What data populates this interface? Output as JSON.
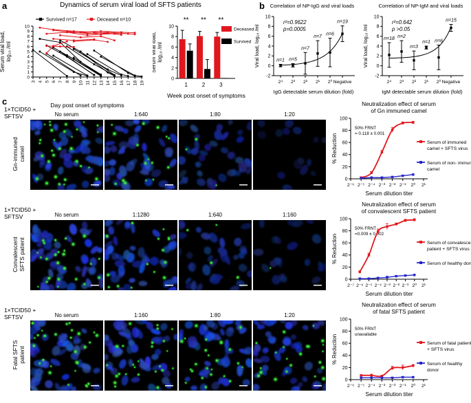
{
  "panels": {
    "a": "a",
    "b": "b",
    "c": "c"
  },
  "chart_data": [
    {
      "id": "a_line",
      "type": "line",
      "title": "Dynamics of serum viral load of SFTS patients",
      "ylabel_lines": [
        "Serum viral load,",
        "log₁₀ /ml"
      ],
      "xlabel": "Day post onset of symptoms",
      "ylim": [
        0,
        10
      ],
      "yticks": [
        0,
        1,
        2,
        3,
        4,
        5,
        6,
        7,
        8,
        9,
        10
      ],
      "xticks": [
        3,
        4,
        5,
        6,
        7,
        8,
        9,
        10,
        11,
        12,
        13,
        14,
        15,
        16,
        17,
        18,
        19
      ],
      "legend": [
        {
          "label": "Survived n=17",
          "color": "#000000"
        },
        {
          "label": "Deceased n=10",
          "color": "#e1171e"
        }
      ],
      "survived_color": "#000000",
      "deceased_color": "#e1171e",
      "survived_lines": [
        [
          [
            3,
            5.3
          ],
          [
            8,
            0.2
          ]
        ],
        [
          [
            4,
            7.5
          ],
          [
            7,
            6.8
          ],
          [
            10,
            3.0
          ],
          [
            13,
            0.3
          ]
        ],
        [
          [
            4,
            5.0
          ],
          [
            9,
            1.0
          ],
          [
            11,
            0.2
          ]
        ],
        [
          [
            5,
            6.2
          ],
          [
            8,
            4.0
          ],
          [
            12,
            0.4
          ]
        ],
        [
          [
            5,
            4.6
          ],
          [
            10,
            0.3
          ]
        ],
        [
          [
            6,
            5.8
          ],
          [
            9,
            3.5
          ],
          [
            13,
            0.4
          ]
        ],
        [
          [
            6,
            4.2
          ],
          [
            11,
            0.3
          ]
        ],
        [
          [
            7,
            7.2
          ],
          [
            10,
            5.0
          ],
          [
            14,
            0.9
          ],
          [
            15,
            0.2
          ]
        ],
        [
          [
            7,
            5.0
          ],
          [
            12,
            0.4
          ]
        ],
        [
          [
            8,
            6.0
          ],
          [
            12,
            2.5
          ],
          [
            15,
            0.3
          ]
        ],
        [
          [
            8,
            4.3
          ],
          [
            13,
            0.2
          ]
        ],
        [
          [
            9,
            5.5
          ],
          [
            14,
            1.5
          ],
          [
            16,
            0.3
          ]
        ],
        [
          [
            9,
            3.8
          ],
          [
            13,
            0.5
          ]
        ],
        [
          [
            10,
            5.0
          ],
          [
            15,
            0.4
          ]
        ],
        [
          [
            11,
            4.5
          ],
          [
            16,
            0.5
          ],
          [
            17,
            0.2
          ]
        ],
        [
          [
            12,
            5.2
          ],
          [
            17,
            0.8
          ],
          [
            18,
            0.2
          ]
        ],
        [
          [
            13,
            4.0
          ],
          [
            18,
            0.3
          ],
          [
            19,
            0.1
          ]
        ]
      ],
      "deceased_lines": [
        [
          [
            4,
            9.7
          ],
          [
            6,
            9.3
          ],
          [
            9,
            9.0
          ],
          [
            12,
            8.8
          ],
          [
            15,
            8.5
          ]
        ],
        [
          [
            5,
            4.7
          ],
          [
            6,
            6.1
          ],
          [
            8,
            7.0
          ]
        ],
        [
          [
            5,
            8.5
          ],
          [
            8,
            8.8
          ],
          [
            11,
            8.2
          ],
          [
            14,
            8.6
          ],
          [
            16,
            8.3
          ]
        ],
        [
          [
            5,
            6.1
          ],
          [
            7,
            6.0
          ],
          [
            9,
            5.9
          ]
        ],
        [
          [
            6,
            9.2
          ],
          [
            9,
            8.7
          ],
          [
            13,
            9.0
          ],
          [
            16,
            8.8
          ],
          [
            18,
            8.7
          ]
        ],
        [
          [
            6,
            7.5
          ],
          [
            9,
            7.2
          ],
          [
            12,
            7.4
          ]
        ],
        [
          [
            7,
            8.2
          ],
          [
            10,
            7.8
          ],
          [
            13,
            8.0
          ],
          [
            15,
            7.2
          ]
        ],
        [
          [
            8,
            9.0
          ],
          [
            11,
            8.5
          ],
          [
            14,
            8.8
          ],
          [
            17,
            8.5
          ]
        ],
        [
          [
            9,
            7.0
          ],
          [
            12,
            7.3
          ],
          [
            14,
            6.9
          ]
        ],
        [
          [
            10,
            8.8
          ],
          [
            13,
            8.4
          ],
          [
            16,
            8.6
          ],
          [
            18,
            8.4
          ]
        ]
      ]
    },
    {
      "id": "a_bar",
      "type": "bar",
      "ylabel_lines": [
        "Serum viral load,",
        "log₁₀ /ml"
      ],
      "xlabel": "Week post onset of symptoms",
      "categories": [
        "1",
        "2",
        "3"
      ],
      "ylim": [
        0,
        10
      ],
      "yticks": [
        0,
        2,
        4,
        6,
        8,
        10
      ],
      "series": [
        {
          "name": "Deceased",
          "color": "#e1171e",
          "values": [
            7.5,
            8.1,
            8.0
          ],
          "errors": [
            1.7,
            0.9,
            0.8
          ]
        },
        {
          "name": "Survived",
          "color": "#000000",
          "values": [
            5.3,
            1.8,
            0.08
          ],
          "errors": [
            1.3,
            1.8,
            0
          ]
        }
      ],
      "significance": [
        "**",
        "**",
        "**"
      ]
    },
    {
      "id": "b_igg",
      "type": "scatter",
      "title": "Correlation of NP-IgG and viral loads",
      "annotation_lines": [
        "r²=0.9622",
        "p=0.0005"
      ],
      "ylabel": "Viral load, log₁₀ /ml",
      "xlabel": "IgG detectable serum dilution (fold)",
      "ylim": [
        -2,
        10
      ],
      "yticks": [
        -2,
        0,
        2,
        4,
        6,
        8,
        10
      ],
      "xticklabels": [
        "2⁴",
        "2³",
        "2²",
        "2¹",
        "2⁰",
        "Negative"
      ],
      "values": [
        0.05,
        0.1,
        0.5,
        2.5,
        2.7,
        6.5
      ],
      "errors": [
        0.25,
        0.35,
        2.2,
        2.6,
        2.9,
        1.6
      ],
      "n_labels": [
        "n=1",
        "n=5",
        "n=7",
        "n=7",
        "n=6",
        "n=19"
      ],
      "curve": {
        "base": 0,
        "a": 0.12,
        "b": 0.8
      }
    },
    {
      "id": "b_igm",
      "type": "scatter",
      "title": "Correlation of NP-IgM and viral loads",
      "annotation_lines": [
        "r²=0.642",
        "p >0.05"
      ],
      "ylabel": "Viral load, log₁₀ /ml",
      "xlabel": "IgM detectable serum dilution (fold)",
      "ylim": [
        -2,
        10
      ],
      "yticks": [
        -2,
        0,
        2,
        4,
        6,
        8,
        10
      ],
      "xticklabels": [
        "2⁴",
        "2³",
        "2²",
        "2¹",
        "2⁰",
        "Negative"
      ],
      "values": [
        2.2,
        2.9,
        1.1,
        3.7,
        1.7,
        7.7
      ],
      "errors": [
        2.5,
        2.2,
        1.9,
        0.3,
        2.5,
        0.7
      ],
      "n_labels": [
        "n=18",
        "n=2",
        "n=3",
        "n=1",
        "n=6",
        "n=15"
      ],
      "curve": {
        "base": 1.5,
        "a": 0.05,
        "b": 0.97
      }
    },
    {
      "id": "c_gn",
      "type": "line",
      "title_lines": [
        "Neutralization effect of serum",
        "of Gn immuned camel"
      ],
      "annotation_lines": [
        "50% FRNT",
        "= 0.118 ± 0.001"
      ],
      "ylabel": "% Reduction",
      "xlabel": "Serum dilution titer",
      "ylim": [
        0,
        100
      ],
      "yticks": [
        0,
        20,
        40,
        60,
        80,
        100
      ],
      "xticklabels": [
        "2⁻⁶",
        "2⁻⁵",
        "2⁻⁴",
        "2⁻³",
        "2⁻²",
        "2⁻¹",
        "2⁰",
        "2¹"
      ],
      "series": [
        {
          "name_lines": [
            "Serum of immuned",
            "camel + SFTS virus"
          ],
          "color": "#e1171e",
          "x": [
            1,
            2,
            3,
            4,
            5,
            6
          ],
          "values": [
            2,
            10,
            44,
            81,
            92,
            93
          ],
          "errors": [
            1,
            2,
            3,
            4,
            2,
            2
          ]
        },
        {
          "name_lines": [
            "Serum of non- immuned",
            "camel"
          ],
          "color": "#2626cc",
          "x": [
            1,
            2,
            3,
            4,
            5,
            6
          ],
          "values": [
            1,
            2,
            2,
            3,
            5,
            7
          ],
          "errors": [
            1,
            1,
            1,
            1,
            1,
            1
          ]
        }
      ]
    },
    {
      "id": "c_conv",
      "type": "line",
      "title_lines": [
        "Neutralization effect of serum",
        "of convalescent SFTS patient"
      ],
      "annotation_lines": [
        "50% FRNT",
        "=0.009 ± 0.002"
      ],
      "ylabel": "% Reduction",
      "xlabel": "Serum dilution titer",
      "ylim": [
        0,
        100
      ],
      "yticks": [
        0,
        20,
        40,
        60,
        80,
        100
      ],
      "xticklabels": [
        "2⁻⁷",
        "2⁻⁶",
        "2⁻⁵",
        "2⁻⁴",
        "2⁻³",
        "2⁻²",
        "2⁻¹",
        "2⁰",
        "2¹"
      ],
      "series": [
        {
          "name_lines": [
            "Serum of convalescent",
            "patient + SFTS virus"
          ],
          "color": "#e1171e",
          "x": [
            1,
            2,
            3,
            4,
            5,
            6,
            7
          ],
          "values": [
            12,
            40,
            79,
            87,
            91,
            97,
            98
          ],
          "errors": [
            2,
            3,
            4,
            5,
            2,
            2,
            2
          ]
        },
        {
          "name_lines": [
            "Serum of healthy donor"
          ],
          "color": "#2626cc",
          "x": [
            1,
            2,
            3,
            4,
            5,
            6,
            7
          ],
          "values": [
            1,
            1,
            2,
            3,
            5,
            6,
            7
          ],
          "errors": [
            1,
            1,
            1,
            2,
            1,
            1,
            1
          ]
        }
      ]
    },
    {
      "id": "c_fatal",
      "type": "line",
      "title_lines": [
        "Neutralization effect of serum",
        "of fatal SFTS patient"
      ],
      "annotation_lines": [
        "50% FRNT",
        "unavailable"
      ],
      "ylabel": "% Reduction",
      "xlabel": "Serum dilution titer",
      "ylim": [
        0,
        100
      ],
      "yticks": [
        0,
        20,
        40,
        60,
        80,
        100
      ],
      "xticklabels": [
        "2⁻⁶",
        "2⁻⁵",
        "2⁻⁴",
        "2⁻³",
        "2⁻²",
        "2⁻¹",
        "2⁰",
        "2¹"
      ],
      "series": [
        {
          "name_lines": [
            "Serum of fatal patient",
            "+ SFTS virus"
          ],
          "color": "#e1171e",
          "x": [
            1,
            2,
            3,
            4,
            5,
            6
          ],
          "values": [
            7,
            7,
            6,
            19,
            20,
            23
          ],
          "errors": [
            1,
            2,
            1,
            3,
            4,
            2
          ]
        },
        {
          "name_lines": [
            "Serum of healthy",
            "donor"
          ],
          "color": "#2626cc",
          "x": [
            1,
            2,
            3,
            4,
            5,
            6
          ],
          "values": [
            3,
            3,
            3,
            3,
            4,
            4
          ],
          "errors": [
            1,
            1,
            1,
            1,
            1,
            1
          ]
        }
      ]
    }
  ],
  "panel_c": {
    "rows": [
      {
        "tcid": "1×TCID50 +\nSFTSV",
        "row_label": "Gn-immuned\ncamel",
        "images": [
          {
            "header": "No serum",
            "cells": 52,
            "green": 30,
            "dim": 1
          },
          {
            "header": "1:640",
            "cells": 48,
            "green": 16,
            "dim": 0.95
          },
          {
            "header": "1:80",
            "cells": 40,
            "green": 3,
            "dim": 0.72
          },
          {
            "header": "1:20",
            "cells": 16,
            "green": 0,
            "dim": 0.45
          }
        ]
      },
      {
        "tcid": "1×TCID50 +\nSFTSV",
        "row_label": "Convalescent\nSFTS patient",
        "images": [
          {
            "header": "No serum",
            "cells": 50,
            "green": 26,
            "dim": 1
          },
          {
            "header": "1:1280",
            "cells": 46,
            "green": 15,
            "dim": 0.95
          },
          {
            "header": "1:640",
            "cells": 38,
            "green": 4,
            "dim": 0.7
          },
          {
            "header": "1:160",
            "cells": 20,
            "green": 1,
            "dim": 0.5
          }
        ]
      },
      {
        "tcid": "1×TCID50 +\nSFTSV",
        "row_label": "Fatal SFTS\npatient",
        "images": [
          {
            "header": "No serum",
            "cells": 50,
            "green": 28,
            "dim": 1
          },
          {
            "header": "1:160",
            "cells": 48,
            "green": 25,
            "dim": 1
          },
          {
            "header": "1:80",
            "cells": 48,
            "green": 24,
            "dim": 0.95
          },
          {
            "header": "1:20",
            "cells": 46,
            "green": 22,
            "dim": 0.95
          }
        ]
      }
    ]
  }
}
